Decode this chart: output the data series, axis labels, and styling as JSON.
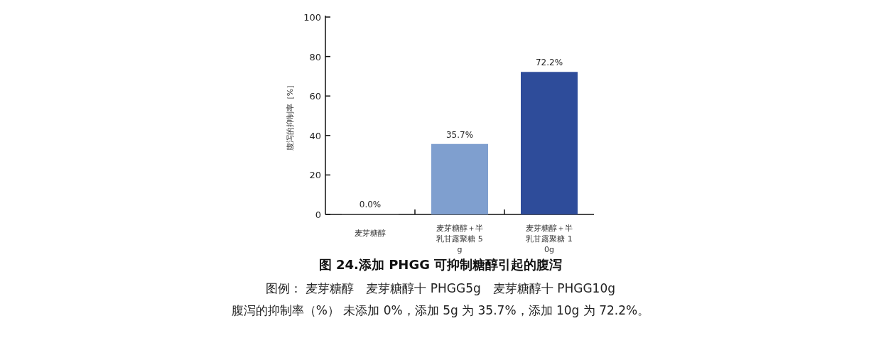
{
  "chart_data": {
    "type": "bar",
    "title": "图 24.添加 PHGG 可抑制糖醇引起的腹泻",
    "ylabel": "腹泻的抑制率［%］",
    "categories": [
      "麦芽糖醇",
      "麦芽糖醇＋半乳甘露聚糖 5g",
      "麦芽糖醇＋半乳甘露聚糖 10g"
    ],
    "values": [
      0,
      35.7,
      72.2
    ],
    "colors": [
      "#6b6b6b",
      "#7f9fcf",
      "#2e4c9a"
    ],
    "value_labels": [
      "0.0%",
      "35.7%",
      "72.2%"
    ],
    "ylim": [
      0,
      100
    ],
    "yticks": [
      0,
      20,
      40,
      60,
      80,
      100
    ],
    "grid": false,
    "annotations": [
      "图例： 麦芽糖醇　麦芽糖醇十 PHGG5g　麦芽糖醇十 PHGG10g",
      "腹泻的抑制率（%） 未添加 0%，添加 5g 为 35.7%，添加 10g 为 72.2%。"
    ]
  }
}
